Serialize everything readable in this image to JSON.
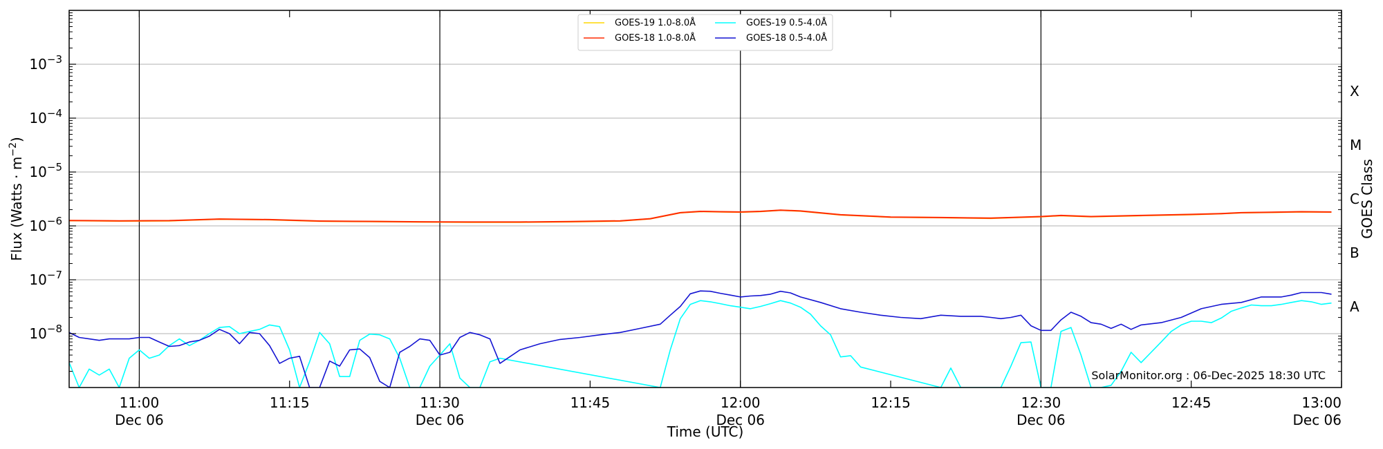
{
  "chart_data": {
    "type": "line",
    "title": "",
    "xlabel": "Time (UTC)",
    "ylabel": "Flux (Watts · m−2)",
    "ylabel_base": "Flux (Watts · m",
    "ylabel_exp": "−2",
    "ylabel_end": ")",
    "y2label": "GOES Class",
    "yscale": "log",
    "ylim": [
      1e-09,
      0.01
    ],
    "xlim": [
      "10:53",
      "13:00"
    ],
    "grid": "horizontal at decades",
    "legend_position": "top-center",
    "watermark": "SolarMonitor.org : 06-Dec-2025 18:30 UTC",
    "yticks": [
      {
        "value": 1e-08,
        "base": "10",
        "exp": "−8"
      },
      {
        "value": 1e-07,
        "base": "10",
        "exp": "−7"
      },
      {
        "value": 1e-06,
        "base": "10",
        "exp": "−6"
      },
      {
        "value": 1e-05,
        "base": "10",
        "exp": "−5"
      },
      {
        "value": 0.0001,
        "base": "10",
        "exp": "−4"
      },
      {
        "value": 0.001,
        "base": "10",
        "exp": "−3"
      }
    ],
    "xticks": [
      {
        "time": "11:00",
        "label": "11:00",
        "sub": "Dec 06"
      },
      {
        "time": "11:15",
        "label": "11:15",
        "sub": ""
      },
      {
        "time": "11:30",
        "label": "11:30",
        "sub": "Dec 06"
      },
      {
        "time": "11:45",
        "label": "11:45",
        "sub": ""
      },
      {
        "time": "12:00",
        "label": "12:00",
        "sub": "Dec 06"
      },
      {
        "time": "12:15",
        "label": "12:15",
        "sub": ""
      },
      {
        "time": "12:30",
        "label": "12:30",
        "sub": "Dec 06"
      },
      {
        "time": "12:45",
        "label": "12:45",
        "sub": ""
      },
      {
        "time": "13:00",
        "label": "13:00",
        "sub": "Dec 06"
      }
    ],
    "vlines": [
      "11:00",
      "11:30",
      "12:00",
      "12:30"
    ],
    "goes_classes": [
      {
        "label": "A",
        "value": 3.16e-08
      },
      {
        "label": "B",
        "value": 3.16e-07
      },
      {
        "label": "C",
        "value": 3.16e-06
      },
      {
        "label": "M",
        "value": 3.16e-05
      },
      {
        "label": "X",
        "value": 0.000316
      }
    ],
    "series": [
      {
        "name": "GOES-19 1.0-8.0Å",
        "color": "#ffd700",
        "x": [
          "10:53",
          "10:58",
          "11:03",
          "11:08",
          "11:13",
          "11:18",
          "11:23",
          "11:28",
          "11:33",
          "11:38",
          "11:43",
          "11:48",
          "11:51",
          "11:54",
          "11:56",
          "11:58",
          "12:00",
          "12:02",
          "12:04",
          "12:06",
          "12:10",
          "12:15",
          "12:20",
          "12:25",
          "12:27",
          "12:30",
          "12:32",
          "12:35",
          "12:40",
          "12:45",
          "12:48",
          "12:50",
          "12:53",
          "12:56",
          "12:59"
        ],
        "values": [
          1.25e-06,
          1.23e-06,
          1.24e-06,
          1.33e-06,
          1.3e-06,
          1.22e-06,
          1.2e-06,
          1.18e-06,
          1.17e-06,
          1.17e-06,
          1.19e-06,
          1.23e-06,
          1.35e-06,
          1.75e-06,
          1.85e-06,
          1.82e-06,
          1.8e-06,
          1.85e-06,
          1.95e-06,
          1.88e-06,
          1.6e-06,
          1.45e-06,
          1.42e-06,
          1.38e-06,
          1.42e-06,
          1.48e-06,
          1.55e-06,
          1.48e-06,
          1.55e-06,
          1.62e-06,
          1.68e-06,
          1.75e-06,
          1.78e-06,
          1.82e-06,
          1.8e-06
        ]
      },
      {
        "name": "GOES-18 1.0-8.0Å",
        "color": "#ff2a00",
        "x": [
          "10:53",
          "10:58",
          "11:03",
          "11:08",
          "11:13",
          "11:18",
          "11:23",
          "11:28",
          "11:33",
          "11:38",
          "11:43",
          "11:48",
          "11:51",
          "11:54",
          "11:56",
          "11:58",
          "12:00",
          "12:02",
          "12:04",
          "12:06",
          "12:10",
          "12:15",
          "12:20",
          "12:25",
          "12:27",
          "12:30",
          "12:32",
          "12:35",
          "12:40",
          "12:45",
          "12:48",
          "12:50",
          "12:53",
          "12:56",
          "12:59"
        ],
        "values": [
          1.26e-06,
          1.24e-06,
          1.25e-06,
          1.34e-06,
          1.31e-06,
          1.23e-06,
          1.21e-06,
          1.19e-06,
          1.18e-06,
          1.18e-06,
          1.2e-06,
          1.24e-06,
          1.36e-06,
          1.76e-06,
          1.86e-06,
          1.83e-06,
          1.81e-06,
          1.86e-06,
          1.96e-06,
          1.89e-06,
          1.61e-06,
          1.46e-06,
          1.43e-06,
          1.39e-06,
          1.43e-06,
          1.49e-06,
          1.56e-06,
          1.49e-06,
          1.56e-06,
          1.63e-06,
          1.69e-06,
          1.76e-06,
          1.79e-06,
          1.83e-06,
          1.81e-06
        ]
      },
      {
        "name": "GOES-19 0.5-4.0Å",
        "color": "#00ffff",
        "x": [
          "10:53",
          "10:54",
          "10:55",
          "10:56",
          "10:57",
          "10:58",
          "10:59",
          "11:00",
          "11:01",
          "11:02",
          "11:03",
          "11:04",
          "11:05",
          "11:06",
          "11:07",
          "11:08",
          "11:09",
          "11:10",
          "11:11",
          "11:12",
          "11:13",
          "11:14",
          "11:15",
          "11:16",
          "11:17",
          "11:18",
          "11:19",
          "11:20",
          "11:21",
          "11:22",
          "11:23",
          "11:24",
          "11:25",
          "11:26",
          "11:27",
          "11:28",
          "11:29",
          "11:30",
          "11:31",
          "11:32",
          "11:33",
          "11:34",
          "11:35",
          "11:36",
          "11:52",
          "11:53",
          "11:54",
          "11:55",
          "11:56",
          "11:57",
          "11:58",
          "11:59",
          "12:00",
          "12:01",
          "12:02",
          "12:03",
          "12:04",
          "12:05",
          "12:06",
          "12:07",
          "12:08",
          "12:09",
          "12:10",
          "12:11",
          "12:12",
          "12:20",
          "12:21",
          "12:22",
          "12:26",
          "12:27",
          "12:28",
          "12:29",
          "12:30",
          "12:31",
          "12:32",
          "12:33",
          "12:34",
          "12:35",
          "12:36",
          "12:37",
          "12:38",
          "12:39",
          "12:40",
          "12:41",
          "12:42",
          "12:43",
          "12:44",
          "12:45",
          "12:46",
          "12:47",
          "12:48",
          "12:49",
          "12:50",
          "12:51",
          "12:52",
          "12:53",
          "12:54",
          "12:55",
          "12:56",
          "12:57",
          "12:58",
          "12:59"
        ],
        "values": [
          2.9e-09,
          1e-09,
          2.2e-09,
          1.7e-09,
          2.2e-09,
          1e-09,
          3.5e-09,
          5e-09,
          3.5e-09,
          4e-09,
          6e-09,
          8e-09,
          6e-09,
          7.5e-09,
          1e-08,
          1.3e-08,
          1.35e-08,
          1e-08,
          1.1e-08,
          1.2e-08,
          1.45e-08,
          1.35e-08,
          5e-09,
          1e-09,
          3e-09,
          1.05e-08,
          6.5e-09,
          1.6e-09,
          1.6e-09,
          7.5e-09,
          9.8e-09,
          9.5e-09,
          8e-09,
          3.5e-09,
          1e-09,
          1e-09,
          2.5e-09,
          4e-09,
          6.5e-09,
          1.5e-09,
          1e-09,
          1e-09,
          3e-09,
          3.5e-09,
          1e-09,
          5e-09,
          1.9e-08,
          3.5e-08,
          4.1e-08,
          3.9e-08,
          3.6e-08,
          3.3e-08,
          3.1e-08,
          2.9e-08,
          3.2e-08,
          3.6e-08,
          4.1e-08,
          3.7e-08,
          3.1e-08,
          2.3e-08,
          1.4e-08,
          9.5e-09,
          3.7e-09,
          3.9e-09,
          2.4e-09,
          1e-09,
          2.3e-09,
          1e-09,
          1e-09,
          2.5e-09,
          6.8e-09,
          7e-09,
          1e-09,
          1e-09,
          1.1e-08,
          1.3e-08,
          4e-09,
          1e-09,
          1e-09,
          1.1e-09,
          2e-09,
          4.5e-09,
          2.9e-09,
          4.5e-09,
          7e-09,
          1.1e-08,
          1.45e-08,
          1.7e-08,
          1.7e-08,
          1.6e-08,
          1.95e-08,
          2.6e-08,
          3e-08,
          3.4e-08,
          3.3e-08,
          3.3e-08,
          3.5e-08,
          3.8e-08,
          4.1e-08,
          3.9e-08,
          3.5e-08,
          3.7e-08
        ]
      },
      {
        "name": "GOES-18 0.5-4.0Å",
        "color": "#1414d2",
        "x": [
          "10:53",
          "10:54",
          "10:55",
          "10:56",
          "10:57",
          "10:58",
          "10:59",
          "11:00",
          "11:01",
          "11:02",
          "11:03",
          "11:04",
          "11:05",
          "11:06",
          "11:07",
          "11:08",
          "11:09",
          "11:10",
          "11:11",
          "11:12",
          "11:13",
          "11:14",
          "11:15",
          "11:16",
          "11:17",
          "11:18",
          "11:19",
          "11:20",
          "11:21",
          "11:22",
          "11:23",
          "11:24",
          "11:25",
          "11:26",
          "11:27",
          "11:28",
          "11:29",
          "11:30",
          "11:31",
          "11:32",
          "11:33",
          "11:34",
          "11:35",
          "11:36",
          "11:38",
          "11:40",
          "11:42",
          "11:44",
          "11:46",
          "11:48",
          "11:50",
          "11:52",
          "11:53",
          "11:54",
          "11:55",
          "11:56",
          "11:57",
          "11:58",
          "11:59",
          "12:00",
          "12:01",
          "12:02",
          "12:03",
          "12:04",
          "12:05",
          "12:06",
          "12:08",
          "12:10",
          "12:12",
          "12:14",
          "12:16",
          "12:18",
          "12:20",
          "12:22",
          "12:24",
          "12:25",
          "12:26",
          "12:27",
          "12:28",
          "12:29",
          "12:30",
          "12:31",
          "12:32",
          "12:33",
          "12:34",
          "12:35",
          "12:36",
          "12:37",
          "12:38",
          "12:39",
          "12:40",
          "12:42",
          "12:44",
          "12:46",
          "12:48",
          "12:50",
          "12:52",
          "12:54",
          "12:55",
          "12:56",
          "12:57",
          "12:58",
          "12:59"
        ],
        "values": [
          1.05e-08,
          8.5e-09,
          8e-09,
          7.5e-09,
          8e-09,
          8e-09,
          8e-09,
          8.5e-09,
          8.5e-09,
          7e-09,
          5.8e-09,
          6e-09,
          7e-09,
          7.5e-09,
          9e-09,
          1.2e-08,
          1e-08,
          6.5e-09,
          1.05e-08,
          1e-08,
          6e-09,
          2.8e-09,
          3.5e-09,
          3.8e-09,
          1e-09,
          1e-09,
          3.1e-09,
          2.5e-09,
          5e-09,
          5.2e-09,
          3.6e-09,
          1.3e-09,
          1e-09,
          4.5e-09,
          5.8e-09,
          8e-09,
          7.5e-09,
          4e-09,
          4.5e-09,
          8.5e-09,
          1.05e-08,
          9.5e-09,
          8e-09,
          2.8e-09,
          5e-09,
          6.5e-09,
          7.8e-09,
          8.5e-09,
          9.5e-09,
          1.05e-08,
          1.25e-08,
          1.5e-08,
          2.2e-08,
          3.2e-08,
          5.5e-08,
          6.2e-08,
          6.1e-08,
          5.6e-08,
          5.2e-08,
          4.8e-08,
          5e-08,
          5.1e-08,
          5.4e-08,
          6.1e-08,
          5.7e-08,
          4.8e-08,
          3.8e-08,
          2.9e-08,
          2.5e-08,
          2.2e-08,
          2e-08,
          1.9e-08,
          2.2e-08,
          2.1e-08,
          2.1e-08,
          2e-08,
          1.9e-08,
          2e-08,
          2.2e-08,
          1.4e-08,
          1.15e-08,
          1.15e-08,
          1.8e-08,
          2.5e-08,
          2.1e-08,
          1.6e-08,
          1.5e-08,
          1.25e-08,
          1.5e-08,
          1.2e-08,
          1.45e-08,
          1.6e-08,
          2e-08,
          2.9e-08,
          3.5e-08,
          3.8e-08,
          4.8e-08,
          4.8e-08,
          5.2e-08,
          5.8e-08,
          5.8e-08,
          5.8e-08,
          5.4e-08
        ]
      }
    ]
  }
}
